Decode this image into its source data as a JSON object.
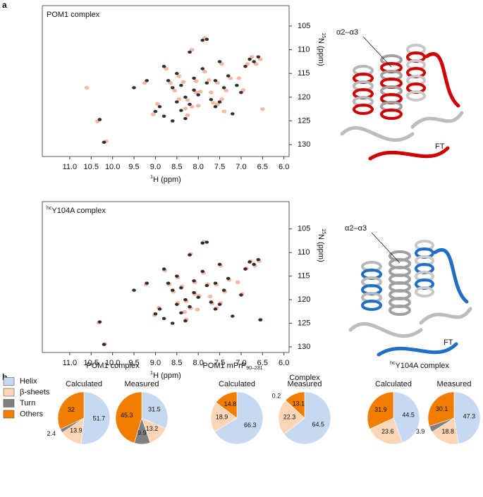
{
  "panel_labels": [
    "a",
    "b"
  ],
  "structure_labels": [
    [
      "α2–α3",
      "FT"
    ],
    [
      "α2–α3",
      "FT"
    ]
  ],
  "legend": {
    "categories": [
      "Helix",
      "β-sheets",
      "Turn",
      "Others"
    ],
    "colors": [
      "#c6d9f1",
      "#fbd5b5",
      "#808080",
      "#f07d00"
    ]
  },
  "pie_group_titles": [
    "POM1 complex",
    {
      "text": "POM1 mPrP",
      "sub": "90–231"
    },
    "Complex",
    {
      "sup": "hc",
      "text": "Y104A complex"
    }
  ],
  "chart_data": [
    {
      "type": "scatter",
      "title": "POM1 complex",
      "xlabel": {
        "sup": "1",
        "text": "H (ppm)"
      },
      "ylabel": {
        "sup": "15",
        "text": "N (ppm)"
      },
      "xlim": [
        11.64,
        5.88
      ],
      "ylim": [
        132.5,
        100.7
      ],
      "xticks": [
        {
          "value": 11,
          "label": "11.0"
        },
        10.5,
        {
          "value": 10,
          "label": "10.0"
        },
        9.5,
        {
          "value": 9,
          "label": "9.0"
        },
        8.5,
        {
          "value": 8,
          "label": "8.0"
        },
        7.5,
        {
          "value": 7,
          "label": "7.0"
        },
        6.5,
        {
          "value": 6,
          "label": "6.0"
        }
      ],
      "yticks": [
        105,
        110,
        115,
        120,
        125,
        130
      ],
      "series": [
        {
          "color": "#f4a58a",
          "x": [
            10.15,
            10.35,
            8.75,
            8.65,
            8.55,
            8.45,
            8.35,
            8.25,
            8.15,
            8.05,
            7.95,
            7.85,
            7.75,
            7.65,
            7.55,
            7.45,
            7.35,
            7.25,
            6.95,
            6.75,
            6.65,
            6.55,
            8.95,
            9.05,
            8.25,
            7.85,
            8.45,
            8.05,
            7.55,
            9.25,
            8.15,
            6.85,
            7.45,
            6.5,
            7.05,
            10.6,
            8.3,
            8.0,
            7.7,
            7.4
          ],
          "values": [
            129.3,
            125.1,
            114,
            117,
            118.6,
            115.6,
            116.8,
            120.6,
            122,
            119,
            118.8,
            114.6,
            116.4,
            121.2,
            121.5,
            113,
            118.6,
            116,
            118.5,
            111.5,
            113,
            112,
            121.4,
            123.6,
            123.8,
            107.5,
            120.4,
            116.6,
            117,
            117,
            110,
            113,
            120.4,
            122.5,
            116,
            118,
            122.4,
            121.8,
            119,
            123
          ]
        },
        {
          "color": "#1a1a1a",
          "x": [
            10.2,
            10.3,
            8.8,
            8.7,
            8.6,
            8.5,
            8.4,
            8.3,
            8.2,
            8.1,
            8.0,
            7.9,
            7.8,
            7.7,
            7.6,
            7.5,
            7.4,
            7.3,
            7.0,
            6.8,
            6.7,
            6.6,
            8.9,
            9.0,
            8.8,
            8.3,
            7.9,
            7.8,
            8.5,
            8.1,
            7.6,
            7.5,
            9.2,
            9.5,
            8.2,
            6.9,
            8.6,
            7.2,
            8.4,
            7.1
          ],
          "values": [
            129.5,
            124.7,
            113.5,
            116.5,
            118,
            115,
            117.5,
            120,
            121.5,
            118.5,
            119.5,
            114,
            117,
            120.5,
            122,
            112.5,
            118,
            115.5,
            119,
            112,
            112.5,
            111.5,
            122,
            123,
            124,
            124.5,
            108,
            107.8,
            121,
            116,
            116.5,
            121,
            116.5,
            118,
            110.5,
            113.5,
            125,
            123.5,
            122.8,
            117.5
          ]
        }
      ]
    },
    {
      "type": "scatter",
      "title": {
        "sup": "hc",
        "text": "Y104A complex"
      },
      "xlabel": {
        "sup": "1",
        "text": "H (ppm)"
      },
      "ylabel": {
        "sup": "15",
        "text": "N (ppm)"
      },
      "xlim": [
        11.64,
        5.88
      ],
      "ylim": [
        131.2,
        99.2
      ],
      "xticks": [
        {
          "value": 11,
          "label": "11.0"
        },
        10.5,
        {
          "value": 10,
          "label": "10.0"
        },
        9.5,
        {
          "value": 9,
          "label": "9.0"
        },
        8.5,
        {
          "value": 8,
          "label": "8.0"
        },
        7.5,
        {
          "value": 7,
          "label": "7.0"
        },
        6.5,
        {
          "value": 6,
          "label": "6.0"
        }
      ],
      "yticks": [
        105,
        110,
        115,
        120,
        125,
        130
      ],
      "series": [
        {
          "color": "#f4a58a",
          "x": [
            10.18,
            10.32,
            8.78,
            8.68,
            8.58,
            8.48,
            8.38,
            8.28,
            8.18,
            8.08,
            7.98,
            7.88,
            7.78,
            7.68,
            7.58,
            7.48,
            7.38,
            7.28,
            6.98,
            6.78,
            6.68,
            6.58,
            8.92,
            9.02,
            8.28,
            7.88,
            8.48,
            8.08,
            7.58,
            9.22,
            8.18,
            6.88,
            7.48,
            6.55,
            7.08,
            8.32,
            8.02,
            7.72
          ],
          "values": [
            129.4,
            124.9,
            113.8,
            116.8,
            118.3,
            115.3,
            117.2,
            120.3,
            121.8,
            118.8,
            119.2,
            114.3,
            116.7,
            120.8,
            121.8,
            112.8,
            118.3,
            115.8,
            118.8,
            111.8,
            112.8,
            111.8,
            121.7,
            123.3,
            124.2,
            107.7,
            120.7,
            116.3,
            116.8,
            116.8,
            110.3,
            113.3,
            120.7,
            124.2,
            116.3,
            122.6,
            122.1,
            119.3
          ]
        },
        {
          "color": "#1a1a1a",
          "x": [
            10.2,
            10.3,
            8.8,
            8.7,
            8.6,
            8.5,
            8.4,
            8.3,
            8.2,
            8.1,
            8.0,
            7.9,
            7.8,
            7.7,
            7.6,
            7.5,
            7.4,
            7.3,
            7.0,
            6.8,
            6.7,
            6.6,
            8.9,
            9.0,
            8.8,
            8.3,
            7.9,
            7.8,
            8.5,
            8.1,
            7.6,
            7.5,
            9.2,
            9.5,
            8.2,
            6.9,
            8.6,
            7.2,
            8.4,
            6.55
          ],
          "values": [
            129.5,
            124.7,
            113.5,
            116.5,
            118,
            115,
            117.5,
            120,
            121.5,
            118.5,
            119.5,
            114,
            117,
            120.5,
            122,
            112.5,
            118,
            115.5,
            119,
            112,
            112.5,
            111.5,
            122,
            123,
            124,
            124.5,
            108,
            107.8,
            121,
            116,
            116.5,
            121,
            116.5,
            118,
            110.5,
            113.5,
            125,
            123.5,
            122.8,
            124.3
          ]
        }
      ]
    },
    {
      "type": "pie",
      "title": "Calculated",
      "categories": [
        "Helix",
        "β-sheets",
        "Turn",
        "Others"
      ],
      "values": [
        51.7,
        13.9,
        2.4,
        32
      ]
    },
    {
      "type": "pie",
      "title": "Measured",
      "categories": [
        "Helix",
        "β-sheets",
        "Turn",
        "Others"
      ],
      "values": [
        31.5,
        13.2,
        9.9,
        45.3
      ]
    },
    {
      "type": "pie",
      "title": "Calculated",
      "categories": [
        "Helix",
        "β-sheets",
        "Others"
      ],
      "values": [
        66.3,
        18.9,
        14.8
      ]
    },
    {
      "type": "pie",
      "title": "Measured",
      "categories": [
        "Helix",
        "β-sheets",
        "Turn",
        "Others"
      ],
      "values": [
        64.5,
        22.3,
        0.2,
        13.1
      ]
    },
    {
      "type": "pie",
      "title": "Calculated",
      "categories": [
        "Helix",
        "β-sheets",
        "Others"
      ],
      "values": [
        44.5,
        23.6,
        31.9
      ]
    },
    {
      "type": "pie",
      "title": "Measured",
      "categories": [
        "Helix",
        "β-sheets",
        "Turn",
        "Others"
      ],
      "values": [
        47.3,
        18.8,
        3.9,
        30.1
      ]
    }
  ]
}
